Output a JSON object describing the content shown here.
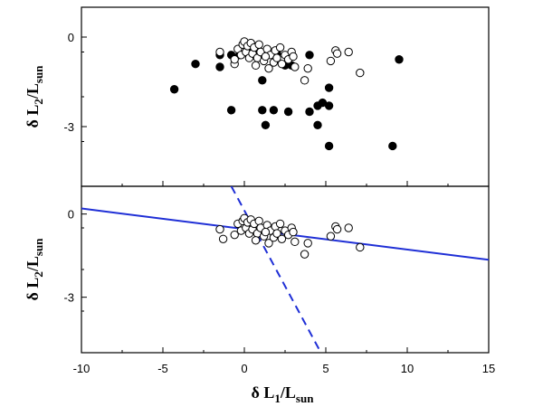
{
  "chart_data": [
    {
      "type": "scatter",
      "panel": "top",
      "xlabel": "δ L1/Lsun",
      "ylabel_parts": {
        "main": "δ L",
        "sub1": "2",
        "mid": "/L",
        "sub2": "sun"
      },
      "xlim": [
        -10,
        15
      ],
      "ylim": [
        -5,
        1
      ],
      "yticks": [
        0,
        -3
      ],
      "series": [
        {
          "marker": "filled-circle",
          "points": [
            [
              -4.3,
              -1.75
            ],
            [
              -3.0,
              -0.9
            ],
            [
              -1.5,
              -0.6
            ],
            [
              -1.5,
              -1.0
            ],
            [
              -0.8,
              -0.6
            ],
            [
              -0.3,
              -0.6
            ],
            [
              0.2,
              -0.45
            ],
            [
              0.6,
              -0.5
            ],
            [
              0.8,
              -0.4
            ],
            [
              1.2,
              -0.6
            ],
            [
              2.0,
              -0.55
            ],
            [
              2.5,
              -0.95
            ],
            [
              2.9,
              -0.95
            ],
            [
              4.0,
              -0.6
            ],
            [
              1.1,
              -1.45
            ],
            [
              -0.8,
              -2.45
            ],
            [
              1.1,
              -2.45
            ],
            [
              1.8,
              -2.45
            ],
            [
              2.7,
              -2.5
            ],
            [
              4.0,
              -2.5
            ],
            [
              4.5,
              -2.3
            ],
            [
              4.8,
              -2.2
            ],
            [
              5.2,
              -2.3
            ],
            [
              5.2,
              -1.7
            ],
            [
              4.5,
              -2.95
            ],
            [
              1.3,
              -2.95
            ],
            [
              5.2,
              -3.65
            ],
            [
              9.1,
              -3.65
            ],
            [
              9.5,
              -0.75
            ]
          ]
        },
        {
          "marker": "open-circle",
          "points": [
            [
              -1.5,
              -0.5
            ],
            [
              -0.6,
              -0.9
            ],
            [
              -0.4,
              -0.4
            ],
            [
              -0.2,
              -0.6
            ],
            [
              -0.1,
              -0.25
            ],
            [
              0.0,
              -0.15
            ],
            [
              0.1,
              -0.5
            ],
            [
              0.2,
              -0.3
            ],
            [
              0.3,
              -0.7
            ],
            [
              0.4,
              -0.2
            ],
            [
              0.5,
              -0.55
            ],
            [
              0.6,
              -0.35
            ],
            [
              0.8,
              -0.7
            ],
            [
              0.9,
              -0.25
            ],
            [
              1.0,
              -0.5
            ],
            [
              1.2,
              -0.8
            ],
            [
              1.4,
              -0.4
            ],
            [
              1.5,
              -1.05
            ],
            [
              1.6,
              -0.6
            ],
            [
              1.8,
              -0.85
            ],
            [
              1.9,
              -0.45
            ],
            [
              2.0,
              -0.7
            ],
            [
              2.2,
              -0.35
            ],
            [
              2.3,
              -0.9
            ],
            [
              2.5,
              -0.6
            ],
            [
              2.7,
              -0.75
            ],
            [
              2.9,
              -0.5
            ],
            [
              3.0,
              -0.65
            ],
            [
              3.1,
              -1.0
            ],
            [
              3.9,
              -1.05
            ],
            [
              3.7,
              -1.45
            ],
            [
              5.3,
              -0.8
            ],
            [
              5.6,
              -0.45
            ],
            [
              5.7,
              -0.55
            ],
            [
              6.4,
              -0.5
            ],
            [
              7.1,
              -1.2
            ],
            [
              1.3,
              -0.65
            ],
            [
              0.7,
              -0.95
            ],
            [
              -0.6,
              -0.75
            ]
          ]
        }
      ]
    },
    {
      "type": "scatter",
      "panel": "bottom",
      "xlabel": "δ L1/Lsun",
      "xlabel_parts": {
        "main": "δ L",
        "sub1": "1",
        "mid": "/L",
        "sub2": "sun"
      },
      "ylabel_parts": {
        "main": "δ L",
        "sub1": "2",
        "mid": "/L",
        "sub2": "sun"
      },
      "xlim": [
        -10,
        15
      ],
      "ylim": [
        -5,
        1
      ],
      "xticks": [
        -10,
        -5,
        0,
        5,
        10,
        15
      ],
      "yticks": [
        0,
        -3
      ],
      "series": [
        {
          "marker": "open-circle",
          "points": [
            [
              -1.5,
              -0.55
            ],
            [
              -1.3,
              -0.9
            ],
            [
              -0.6,
              -0.75
            ],
            [
              -0.4,
              -0.35
            ],
            [
              -0.2,
              -0.6
            ],
            [
              -0.1,
              -0.25
            ],
            [
              0.0,
              -0.15
            ],
            [
              0.1,
              -0.5
            ],
            [
              0.2,
              -0.3
            ],
            [
              0.3,
              -0.7
            ],
            [
              0.4,
              -0.2
            ],
            [
              0.5,
              -0.55
            ],
            [
              0.6,
              -0.35
            ],
            [
              0.8,
              -0.7
            ],
            [
              0.9,
              -0.25
            ],
            [
              1.0,
              -0.5
            ],
            [
              1.2,
              -0.8
            ],
            [
              1.4,
              -0.4
            ],
            [
              1.5,
              -1.05
            ],
            [
              1.6,
              -0.6
            ],
            [
              1.8,
              -0.85
            ],
            [
              1.9,
              -0.45
            ],
            [
              2.0,
              -0.7
            ],
            [
              2.2,
              -0.35
            ],
            [
              2.3,
              -0.9
            ],
            [
              2.5,
              -0.6
            ],
            [
              2.7,
              -0.75
            ],
            [
              2.9,
              -0.5
            ],
            [
              3.0,
              -0.65
            ],
            [
              3.1,
              -1.0
            ],
            [
              3.9,
              -1.05
            ],
            [
              3.7,
              -1.45
            ],
            [
              5.3,
              -0.8
            ],
            [
              5.6,
              -0.45
            ],
            [
              5.7,
              -0.55
            ],
            [
              6.4,
              -0.5
            ],
            [
              7.1,
              -1.2
            ],
            [
              1.3,
              -0.65
            ],
            [
              0.7,
              -0.95
            ]
          ]
        }
      ],
      "lines": [
        {
          "style": "solid",
          "color": "#1f2fd6",
          "from": [
            -10,
            0.2
          ],
          "to": [
            15,
            -1.65
          ]
        },
        {
          "style": "dashed",
          "color": "#1f2fd6",
          "from": [
            -0.8,
            1.0
          ],
          "to": [
            4.7,
            -5.0
          ]
        }
      ]
    }
  ],
  "colors": {
    "line": "#1f2fd6",
    "axis": "#000000"
  }
}
